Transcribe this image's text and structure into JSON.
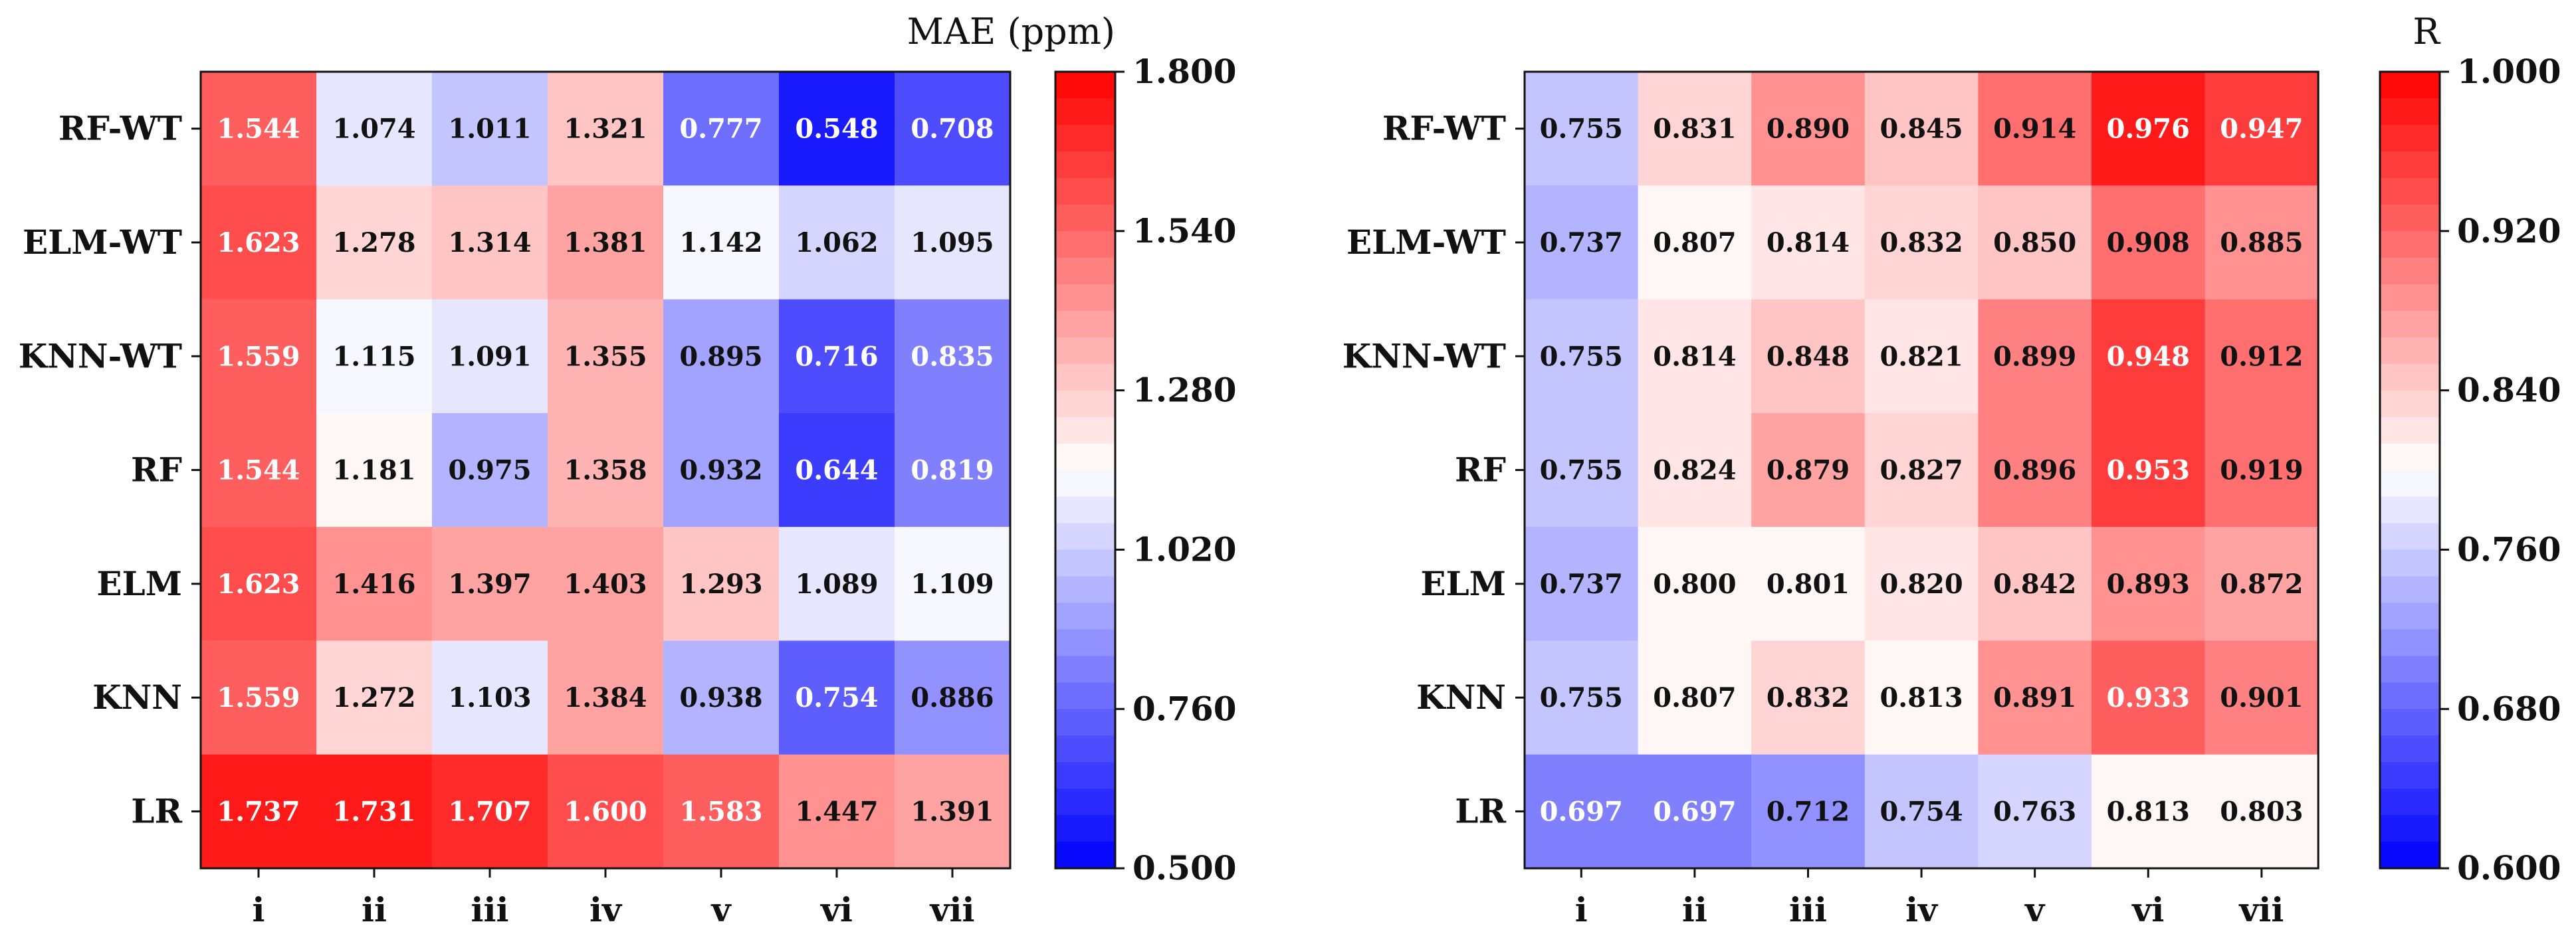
{
  "chart_data": [
    {
      "type": "heatmap",
      "title": "MAE (ppm)",
      "rows": [
        "RF-WT",
        "ELM-WT",
        "KNN-WT",
        "RF",
        "ELM",
        "KNN",
        "LR"
      ],
      "columns": [
        "i",
        "ii",
        "iii",
        "iv",
        "v",
        "vi",
        "vii"
      ],
      "values": [
        [
          1.544,
          1.074,
          1.011,
          1.321,
          0.777,
          0.548,
          0.708
        ],
        [
          1.623,
          1.278,
          1.314,
          1.381,
          1.142,
          1.062,
          1.095
        ],
        [
          1.559,
          1.115,
          1.091,
          1.355,
          0.895,
          0.716,
          0.835
        ],
        [
          1.544,
          1.181,
          0.975,
          1.358,
          0.932,
          0.644,
          0.819
        ],
        [
          1.623,
          1.416,
          1.397,
          1.403,
          1.293,
          1.089,
          1.109
        ],
        [
          1.559,
          1.272,
          1.103,
          1.384,
          0.938,
          0.754,
          0.886
        ],
        [
          1.737,
          1.731,
          1.707,
          1.6,
          1.583,
          1.447,
          1.391
        ]
      ],
      "decimals": 3,
      "colorbar": {
        "min": 0.5,
        "max": 1.8,
        "ticks": [
          "1.800",
          "1.540",
          "1.280",
          "1.020",
          "0.760",
          "0.500"
        ],
        "levels": 30,
        "low_color": "#0000ff",
        "mid_color": "#ffffff",
        "high_color": "#ff0000"
      }
    },
    {
      "type": "heatmap",
      "title": "R",
      "rows": [
        "RF-WT",
        "ELM-WT",
        "KNN-WT",
        "RF",
        "ELM",
        "KNN",
        "LR"
      ],
      "columns": [
        "i",
        "ii",
        "iii",
        "iv",
        "v",
        "vi",
        "vii"
      ],
      "values": [
        [
          0.755,
          0.831,
          0.89,
          0.845,
          0.914,
          0.976,
          0.947
        ],
        [
          0.737,
          0.807,
          0.814,
          0.832,
          0.85,
          0.908,
          0.885
        ],
        [
          0.755,
          0.814,
          0.848,
          0.821,
          0.899,
          0.948,
          0.912
        ],
        [
          0.755,
          0.824,
          0.879,
          0.827,
          0.896,
          0.953,
          0.919
        ],
        [
          0.737,
          0.8,
          0.801,
          0.82,
          0.842,
          0.893,
          0.872
        ],
        [
          0.755,
          0.807,
          0.832,
          0.813,
          0.891,
          0.933,
          0.901
        ],
        [
          0.697,
          0.697,
          0.712,
          0.754,
          0.763,
          0.813,
          0.803
        ]
      ],
      "decimals": 3,
      "colorbar": {
        "min": 0.6,
        "max": 1.0,
        "ticks": [
          "1.000",
          "0.920",
          "0.840",
          "0.760",
          "0.680",
          "0.600"
        ],
        "levels": 30,
        "low_color": "#0000ff",
        "mid_color": "#ffffff",
        "high_color": "#ff0000"
      }
    }
  ]
}
